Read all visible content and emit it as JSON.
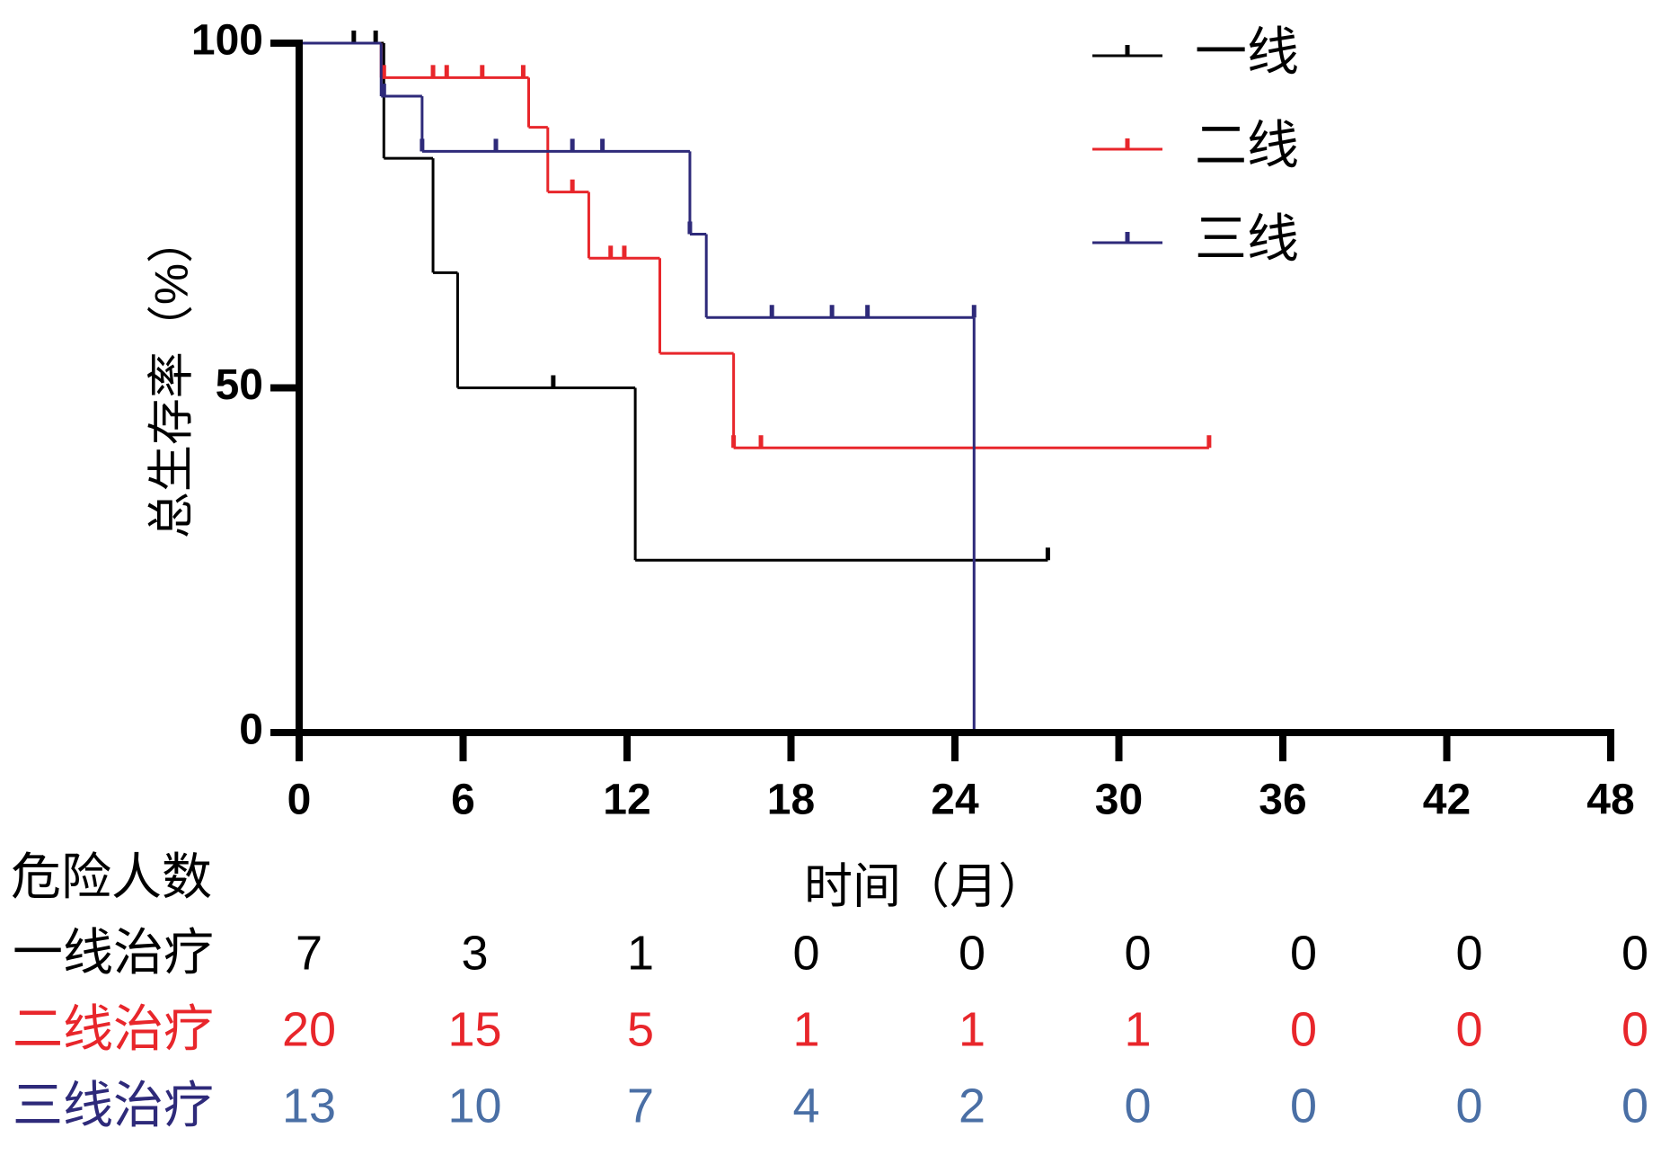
{
  "chart_data": {
    "type": "km",
    "ylabel": "总生存率（%）",
    "xlabel": "时间（月）",
    "xlim": [
      0,
      48
    ],
    "ylim": [
      0,
      100
    ],
    "xticks": [
      0,
      6,
      12,
      18,
      24,
      30,
      36,
      42,
      48
    ],
    "yticks": [
      0,
      50,
      100
    ],
    "legend": "upper right",
    "series": [
      {
        "name": "一线",
        "color": "#000000",
        "x": [
          0,
          3.1,
          4.9,
          5.8,
          12.3
        ],
        "values": [
          100,
          83.3,
          66.7,
          50,
          25
        ],
        "censor_x": [
          2.0,
          2.8,
          9.3,
          27.4
        ],
        "censor_values": [
          100,
          100,
          50,
          25
        ]
      },
      {
        "name": "二线",
        "color": "#e8262b",
        "x": [
          0,
          3.0,
          8.4,
          9.1,
          10.6,
          13.2,
          15.9
        ],
        "values": [
          100,
          95,
          87.8,
          78.4,
          68.8,
          55,
          41.3
        ],
        "censor_x": [
          3.1,
          4.9,
          5.4,
          6.7,
          8.2,
          10.0,
          11.4,
          11.9,
          15.9,
          16.9,
          33.3
        ],
        "censor_values": [
          95,
          95,
          95,
          95,
          95,
          78.4,
          68.8,
          68.8,
          41.3,
          41.3,
          41.3
        ]
      },
      {
        "name": "三线",
        "color": "#2e2a7a",
        "x": [
          0,
          3.0,
          4.5,
          14.3,
          14.9,
          24.7
        ],
        "values": [
          100,
          92.3,
          84.3,
          72.3,
          60.2,
          0
        ],
        "censor_x": [
          3.1,
          4.5,
          7.2,
          10.0,
          11.1,
          14.3,
          17.3,
          19.5,
          20.8,
          24.7
        ],
        "censor_values": [
          92.3,
          84.3,
          84.3,
          84.3,
          84.3,
          72.3,
          60.2,
          60.2,
          60.2,
          60.2
        ]
      }
    ]
  },
  "risk_table": {
    "title": "危险人数",
    "rows": [
      {
        "label": "一线治疗",
        "label_color": "#000000",
        "color": "#000000",
        "counts": [
          7,
          3,
          1,
          0,
          0,
          0,
          0,
          0,
          0
        ]
      },
      {
        "label": "二线治疗",
        "label_color": "#e8262b",
        "color": "#e8262b",
        "counts": [
          20,
          15,
          5,
          1,
          1,
          1,
          0,
          0,
          0
        ]
      },
      {
        "label": "三线治疗",
        "label_color": "#2e2a7a",
        "color": "#4a6fa5",
        "counts": [
          13,
          10,
          7,
          4,
          2,
          0,
          0,
          0,
          0
        ]
      }
    ]
  }
}
